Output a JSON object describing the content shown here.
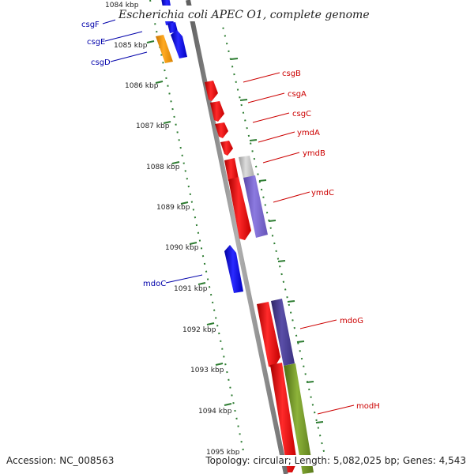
{
  "title": "Escherichia coli APEC O1, complete genome",
  "accession": "Accession: NC_008563",
  "summary": "Topology: circular; Length: 5,082,025 bp; Genes: 4,543",
  "colors": {
    "forward_gene": "#ee0000",
    "reverse_gene": "#0000ee",
    "orange_gene": "#f39c12",
    "cog_gray": "#bbbbbb",
    "cog_purple": "#7b68c8",
    "cog_darkpurple": "#4a3f8c",
    "cog_olive": "#6b8e23",
    "backbone": "#808080",
    "tick": "#2e7d32",
    "label_red": "#cc0000",
    "label_blue": "#0000aa"
  },
  "kbp_ticks": [
    "1084 kbp",
    "1085 kbp",
    "1086 kbp",
    "1087 kbp",
    "1088 kbp",
    "1089 kbp",
    "1090 kbp",
    "1091 kbp",
    "1092 kbp",
    "1093 kbp",
    "1094 kbp",
    "1095 kbp"
  ],
  "left_labels": [
    "csgF",
    "csgE",
    "csgD",
    "mdoC"
  ],
  "right_labels": [
    "csgB",
    "csgA",
    "csgC",
    "ymdA",
    "ymdB",
    "ymdC",
    "mdoG",
    "modH"
  ]
}
